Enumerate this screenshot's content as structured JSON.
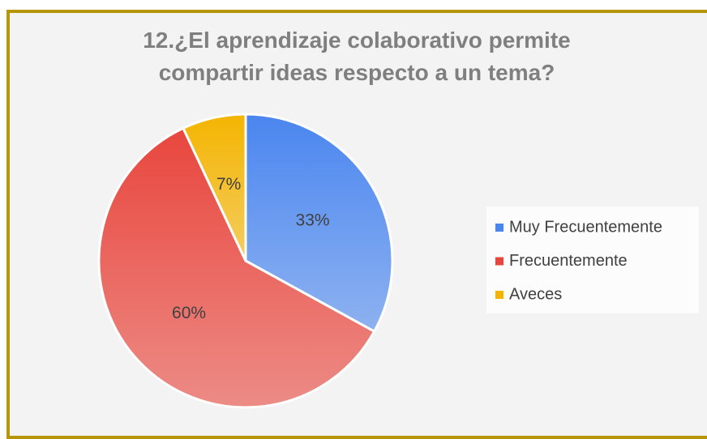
{
  "chart_data": {
    "type": "pie",
    "title": "12.¿El aprendizaje colaborativo permite compartir ideas respecto a un tema?",
    "categories": [
      "Muy Frecuentemente",
      "Frecuentemente",
      "Aveces"
    ],
    "values": [
      33,
      60,
      7
    ],
    "value_labels": [
      "33%",
      "60%",
      "7%"
    ],
    "colors": [
      "#4a86ef",
      "#e8463d",
      "#f4b400"
    ],
    "legend": "right"
  }
}
